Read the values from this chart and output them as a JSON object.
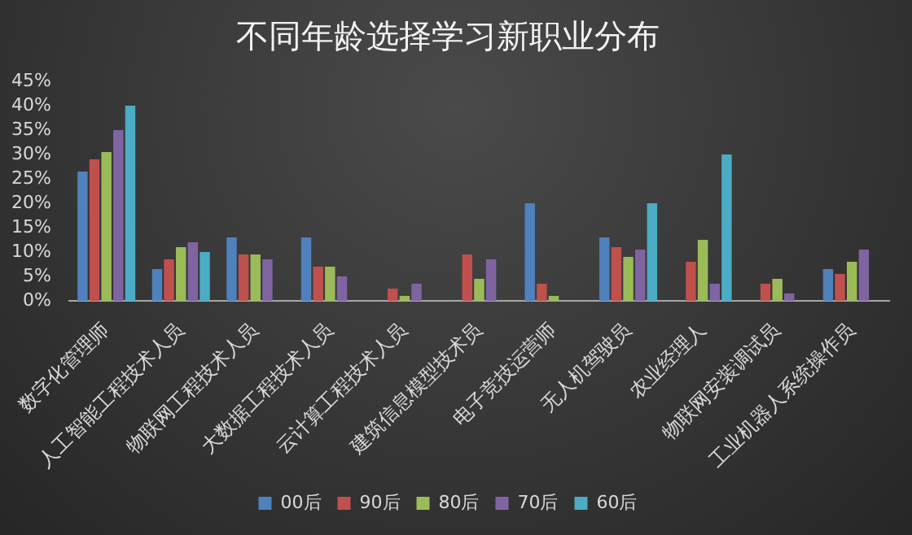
{
  "chart_data": {
    "type": "bar",
    "title": "不同年龄选择学习新职业分布",
    "categories": [
      "数字化管理师",
      "人工智能工程技术人员",
      "物联网工程技术人员",
      "大数据工程技术人员",
      "云计算工程技术人员",
      "建筑信息模型技术员",
      "电子竞技运营师",
      "无人机驾驶员",
      "农业经理人",
      "物联网安装调试员",
      "工业机器人系统操作员"
    ],
    "series": [
      {
        "name": "00后",
        "color": "#4f81bd",
        "values": [
          26.5,
          6.5,
          13,
          13,
          null,
          null,
          20,
          13,
          null,
          null,
          6.5
        ]
      },
      {
        "name": "90后",
        "color": "#c0504d",
        "values": [
          29,
          8.5,
          9.5,
          7,
          2.5,
          9.5,
          3.5,
          11,
          8,
          3.5,
          5.5
        ]
      },
      {
        "name": "80后",
        "color": "#9bbb59",
        "values": [
          30.5,
          11,
          9.5,
          7,
          1,
          4.5,
          1,
          9,
          12.5,
          4.5,
          8
        ]
      },
      {
        "name": "70后",
        "color": "#8064a2",
        "values": [
          35,
          12,
          8.5,
          5,
          3.5,
          8.5,
          null,
          10.5,
          3.5,
          1.5,
          10.5
        ]
      },
      {
        "name": "60后",
        "color": "#4bacc6",
        "values": [
          40,
          10,
          null,
          null,
          null,
          null,
          null,
          20,
          30,
          null,
          null
        ]
      }
    ],
    "ylim": [
      0,
      45
    ],
    "yticks": [
      {
        "value": 0,
        "label": "0%"
      },
      {
        "value": 5,
        "label": "5%"
      },
      {
        "value": 10,
        "label": "10%"
      },
      {
        "value": 15,
        "label": "15%"
      },
      {
        "value": 20,
        "label": "20%"
      },
      {
        "value": 25,
        "label": "25%"
      },
      {
        "value": 30,
        "label": "30%"
      },
      {
        "value": 35,
        "label": "35%"
      },
      {
        "value": 40,
        "label": "40%"
      },
      {
        "value": 45,
        "label": "45%"
      }
    ],
    "grid": false,
    "legend": "bottom"
  }
}
